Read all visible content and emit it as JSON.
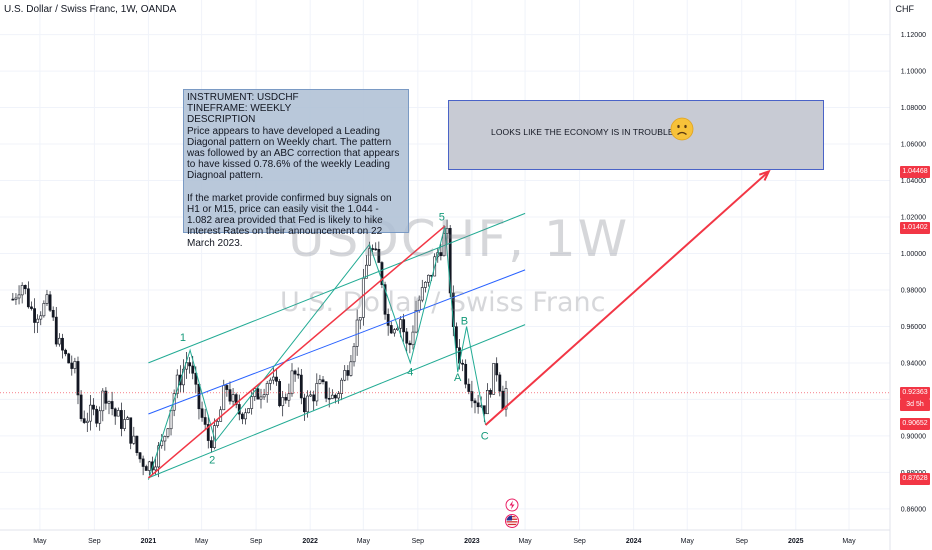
{
  "header": {
    "symbol_line": "U.S. Dollar / Swiss Franc, 1W, OANDA",
    "currency": "CHF"
  },
  "watermark": {
    "ticker": "USDCHF, 1W",
    "name": "U.S. Dollar / Swiss Franc"
  },
  "description_box": {
    "text": "INSTRUMENT: USDCHF\nTINEFRAME: WEEKLY\nDESCRIPTION\nPrice appears to have developed a Leading Diagonal pattern on Weekly chart. The pattern was followed by an ABC correction that appears to have kissed 0.78.6% of the weekly Leading Diagnoal pattern.\n\nIf the market provide confirmed buy signals on H1 or M15, price can easily visit the 1.044 - 1.082 area provided that Fed is likely to hike Interest Rates on their announcement on 22 March 2023."
  },
  "target_box": {
    "text": "LOOKS LIKE THE ECONOMY IS IN TROUBLE!",
    "emoji_icon": "slightly-frowning-face-icon"
  },
  "price_badges": [
    {
      "label": "1.04468",
      "color": "#f23645"
    },
    {
      "label": "1.01402",
      "color": "#f23645"
    },
    {
      "label": "0.92363",
      "sub": "3d 5h",
      "color": "#f23645"
    },
    {
      "label": "0.90652",
      "color": "#f23645"
    },
    {
      "label": "0.87628",
      "color": "#f23645"
    }
  ],
  "event_icons": [
    "lightning-event-icon",
    "us-flag-event-icon"
  ],
  "colors": {
    "up": "#26a69a",
    "down": "#ef5350",
    "candle": "#131722",
    "channel": "#22ab94",
    "midline": "#2962ff",
    "arrow": "#f23645",
    "wave_label": "#159a7a"
  },
  "chart_data": {
    "type": "candlestick",
    "title": "U.S. Dollar / Swiss Franc, 1W, OANDA",
    "xlabel": "",
    "ylabel": "CHF",
    "x_ticks": [
      "May",
      "Sep",
      "2021",
      "May",
      "Sep",
      "2022",
      "May",
      "Sep",
      "2023",
      "May",
      "Sep",
      "2024",
      "May",
      "Sep",
      "2025",
      "May"
    ],
    "y_ticks": [
      "1.12000",
      "1.10000",
      "1.08000",
      "1.06000",
      "1.04000",
      "1.02000",
      "1.00000",
      "0.98000",
      "0.96000",
      "0.94000",
      "0.92000",
      "0.90000",
      "0.88000",
      "0.86000"
    ],
    "ylim": [
      0.855,
      1.128
    ],
    "last_price": 0.92363,
    "price_path": [
      [
        "2020-03-01",
        0.975
      ],
      [
        "2020-03-20",
        0.985
      ],
      [
        "2020-04-15",
        0.967
      ],
      [
        "2020-05-20",
        0.972
      ],
      [
        "2020-06-15",
        0.948
      ],
      [
        "2020-07-20",
        0.935
      ],
      [
        "2020-08-01",
        0.91
      ],
      [
        "2020-09-05",
        0.912
      ],
      [
        "2020-09-25",
        0.925
      ],
      [
        "2020-10-20",
        0.91
      ],
      [
        "2020-11-15",
        0.906
      ],
      [
        "2020-12-10",
        0.888
      ],
      [
        "2021-01-05",
        0.884
      ],
      [
        "2021-02-01",
        0.895
      ],
      [
        "2021-03-01",
        0.925
      ],
      [
        "2021-04-01",
        0.943
      ],
      [
        "2021-04-20",
        0.92
      ],
      [
        "2021-05-15",
        0.898
      ],
      [
        "2021-06-01",
        0.9
      ],
      [
        "2021-06-25",
        0.928
      ],
      [
        "2021-07-20",
        0.912
      ],
      [
        "2021-08-20",
        0.918
      ],
      [
        "2021-09-30",
        0.932
      ],
      [
        "2021-11-01",
        0.918
      ],
      [
        "2021-11-25",
        0.935
      ],
      [
        "2021-12-20",
        0.917
      ],
      [
        "2022-01-20",
        0.927
      ],
      [
        "2022-02-25",
        0.92
      ],
      [
        "2022-03-25",
        0.937
      ],
      [
        "2022-04-25",
        0.97
      ],
      [
        "2022-05-15",
        1.005
      ],
      [
        "2022-06-10",
        0.99
      ],
      [
        "2022-06-25",
        0.96
      ],
      [
        "2022-07-25",
        0.965
      ],
      [
        "2022-08-10",
        0.945
      ],
      [
        "2022-08-30",
        0.972
      ],
      [
        "2022-09-25",
        0.985
      ],
      [
        "2022-10-15",
        1.0
      ],
      [
        "2022-11-05",
        1.012
      ],
      [
        "2022-11-20",
        0.955
      ],
      [
        "2022-12-15",
        0.935
      ],
      [
        "2023-01-10",
        0.92
      ],
      [
        "2023-02-01",
        0.916
      ],
      [
        "2023-02-15",
        0.932
      ],
      [
        "2023-03-01",
        0.938
      ],
      [
        "2023-03-10",
        0.918
      ],
      [
        "2023-03-20",
        0.926
      ]
    ],
    "annotations": {
      "wave_labels": [
        {
          "text": "1",
          "x": "2021-03-20",
          "y": 0.952
        },
        {
          "text": "2",
          "x": "2021-05-25",
          "y": 0.885
        },
        {
          "text": "4",
          "x": "2022-08-15",
          "y": 0.933
        },
        {
          "text": "5",
          "x": "2022-10-25",
          "y": 1.018
        },
        {
          "text": "B",
          "x": "2022-12-15",
          "y": 0.961
        },
        {
          "text": "A",
          "x": "2022-11-30",
          "y": 0.93
        },
        {
          "text": "C",
          "x": "2023-01-30",
          "y": 0.898
        }
      ],
      "channel_lower": [
        [
          "2021-01-01",
          0.877
        ],
        [
          "2023-05-01",
          0.961
        ]
      ],
      "channel_upper": [
        [
          "2021-01-01",
          0.94
        ],
        [
          "2023-05-01",
          1.022
        ]
      ],
      "channel_mid": [
        [
          "2021-01-01",
          0.912
        ],
        [
          "2023-05-01",
          0.991
        ]
      ],
      "wave_path": [
        [
          "2021-01-01",
          0.876
        ],
        [
          "2021-04-05",
          0.947
        ],
        [
          "2021-06-01",
          0.897
        ],
        [
          "2022-05-15",
          1.005
        ],
        [
          "2022-08-15",
          0.94
        ],
        [
          "2022-11-01",
          1.015
        ],
        [
          "2022-11-30",
          0.935
        ],
        [
          "2022-12-20",
          0.96
        ],
        [
          "2023-02-01",
          0.906
        ]
      ],
      "trend_red": [
        [
          "2021-01-01",
          0.877
        ],
        [
          "2022-11-01",
          1.015
        ]
      ],
      "target_arrow": [
        [
          "2023-02-01",
          0.906
        ],
        [
          "2024-11-01",
          1.045
        ]
      ],
      "target_zone": {
        "x_start": "2023-04-15",
        "x_end": "2025-03-15",
        "y_low": 1.044,
        "y_high": 1.082
      }
    }
  }
}
